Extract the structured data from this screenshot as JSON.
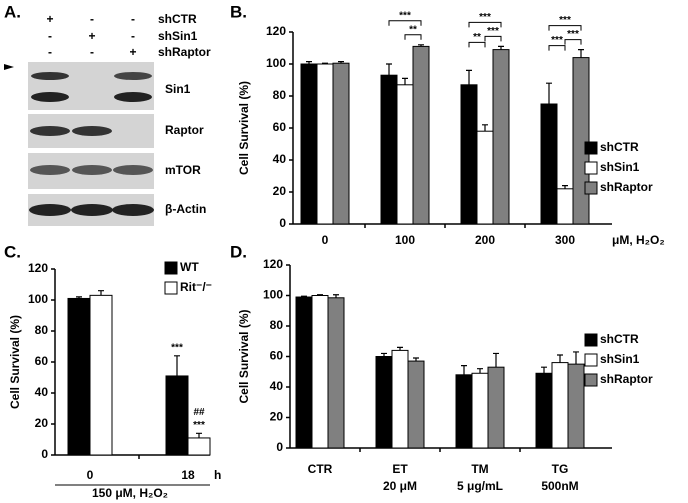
{
  "blot": {
    "panel": "A.",
    "conditions": [
      {
        "name": "shCTR",
        "marks": [
          "+",
          "-",
          "-"
        ]
      },
      {
        "name": "shSin1",
        "marks": [
          "-",
          "+",
          "-"
        ]
      },
      {
        "name": "shRaptor",
        "marks": [
          "-",
          "-",
          "+"
        ]
      }
    ],
    "bands": [
      "Sin1",
      "Raptor",
      "mTOR",
      "β-Actin"
    ]
  },
  "chart_data": [
    {
      "type": "bar",
      "panel": "B.",
      "ylabel": "Cell Survival (%)",
      "xunit": "μM, H₂O₂",
      "categories": [
        "0",
        "100",
        "200",
        "300"
      ],
      "series": [
        {
          "name": "shCTR",
          "color": "#000000",
          "values": [
            100,
            93,
            87,
            75
          ],
          "errors": [
            1.5,
            7,
            9,
            13
          ]
        },
        {
          "name": "shSin1",
          "color": "#ffffff",
          "values": [
            100,
            87,
            58,
            22
          ],
          "errors": [
            0.5,
            4,
            4,
            2
          ]
        },
        {
          "name": "shRaptor",
          "color": "#808080",
          "values": [
            100.5,
            111,
            109,
            104
          ],
          "errors": [
            1,
            1,
            2,
            5
          ]
        }
      ],
      "significance": [
        [],
        [
          "***",
          "**"
        ],
        [
          "***",
          "**",
          "***"
        ],
        [
          "***",
          "***",
          "***"
        ]
      ],
      "ylim": [
        0,
        120
      ],
      "yticks": [
        0,
        20,
        40,
        60,
        80,
        100,
        120
      ],
      "legend": "right"
    },
    {
      "type": "bar",
      "panel": "C.",
      "ylabel": "Cell Survival (%)",
      "xunit": "h",
      "xlabel": "150 μM, H₂O₂",
      "categories": [
        "0",
        "18"
      ],
      "series": [
        {
          "name": "WT",
          "color": "#000000",
          "values": [
            101,
            51
          ],
          "errors": [
            1,
            13
          ],
          "labels": [
            [],
            [
              "***"
            ]
          ]
        },
        {
          "name": "Rit⁻/⁻",
          "color": "#ffffff",
          "values": [
            103,
            11
          ],
          "errors": [
            3,
            3
          ],
          "labels": [
            [],
            [
              "##",
              "***"
            ]
          ]
        }
      ],
      "ylim": [
        0,
        120
      ],
      "yticks": [
        0,
        20,
        40,
        60,
        80,
        100,
        120
      ],
      "legend": "upper right"
    },
    {
      "type": "bar",
      "panel": "D.",
      "ylabel": "Cell Survival (%)",
      "categories": [
        [
          "CTR"
        ],
        [
          "ET",
          "20 μM"
        ],
        [
          "TM",
          "5 μg/mL"
        ],
        [
          "TG",
          "500nM"
        ]
      ],
      "series": [
        {
          "name": "shCTR",
          "color": "#000000",
          "values": [
            99,
            60,
            48,
            49
          ],
          "errors": [
            0.5,
            2,
            6,
            4
          ]
        },
        {
          "name": "shSin1",
          "color": "#ffffff",
          "values": [
            100,
            64,
            49,
            56
          ],
          "errors": [
            0.5,
            2,
            3,
            5
          ]
        },
        {
          "name": "shRaptor",
          "color": "#808080",
          "values": [
            98.5,
            57,
            53,
            55
          ],
          "errors": [
            2,
            2,
            9,
            8
          ]
        }
      ],
      "ylim": [
        0,
        120
      ],
      "yticks": [
        0,
        20,
        40,
        60,
        80,
        100,
        120
      ],
      "legend": "right"
    }
  ]
}
